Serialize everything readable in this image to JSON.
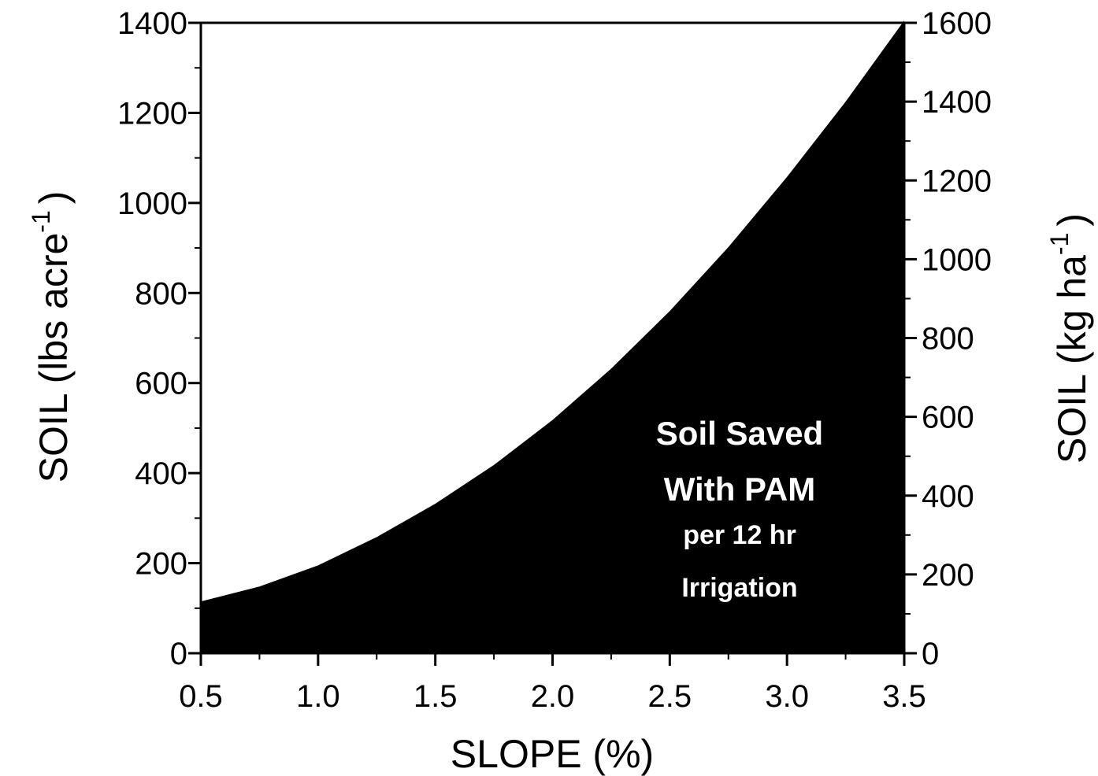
{
  "chart_data": {
    "type": "area",
    "x": [
      0.5,
      0.75,
      1.0,
      1.25,
      1.5,
      1.75,
      2.0,
      2.25,
      2.5,
      2.75,
      3.0,
      3.25,
      3.5
    ],
    "series": [
      {
        "values": [
          115,
          148,
          195,
          258,
          332,
          418,
          518,
          632,
          760,
          902,
          1058,
          1225,
          1405
        ]
      }
    ],
    "xlabel": "SLOPE (%)",
    "xlim": [
      0.5,
      3.5
    ],
    "xticks": [
      "0.5",
      "1.0",
      "1.5",
      "2.0",
      "2.5",
      "3.0",
      "3.5"
    ],
    "ylabel_left": {
      "main": "SOIL (lbs acre",
      "sup": "-1",
      "close": ")"
    },
    "ylim_left": [
      0,
      1400
    ],
    "yticks_left": [
      "0",
      "200",
      "400",
      "600",
      "800",
      "1000",
      "1200",
      "1400"
    ],
    "ylabel_right": {
      "main": "SOIL (kg ha",
      "sup": "-1",
      "close": ")"
    },
    "ylim_right": [
      0,
      1600
    ],
    "yticks_right": [
      "0",
      "200",
      "400",
      "600",
      "800",
      "1000",
      "1200",
      "1400",
      "1600"
    ],
    "annotation": [
      "Soil Saved",
      "With PAM",
      "per 12 hr",
      "Irrigation"
    ],
    "fill_color": "#000000",
    "grid": false
  }
}
